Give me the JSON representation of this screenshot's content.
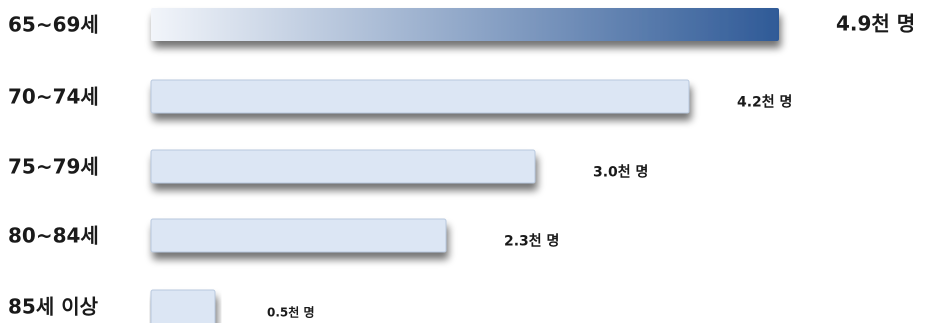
{
  "chart_data": {
    "type": "bar",
    "orientation": "horizontal",
    "categories": [
      "65~69세",
      "70~74세",
      "75~79세",
      "80~84세",
      "85세 이상"
    ],
    "values": [
      4.9,
      4.2,
      3.0,
      2.3,
      0.5
    ],
    "value_labels": [
      "4.9천 명",
      "4.2천 명",
      "3.0천 명",
      "2.3천 명",
      "0.5천 명"
    ],
    "unit": "천 명",
    "xlim": [
      0,
      4.9
    ],
    "grid": false,
    "legend": "none",
    "highlight_index": 0,
    "colors": {
      "bar_fill": "#dce6f4",
      "bar_edge": "#b8c8de",
      "highlight_start": "#f2f5fa",
      "highlight_end": "#2f5a97",
      "shadow": "#5a5a5a",
      "text": "#1a1a1a"
    }
  }
}
